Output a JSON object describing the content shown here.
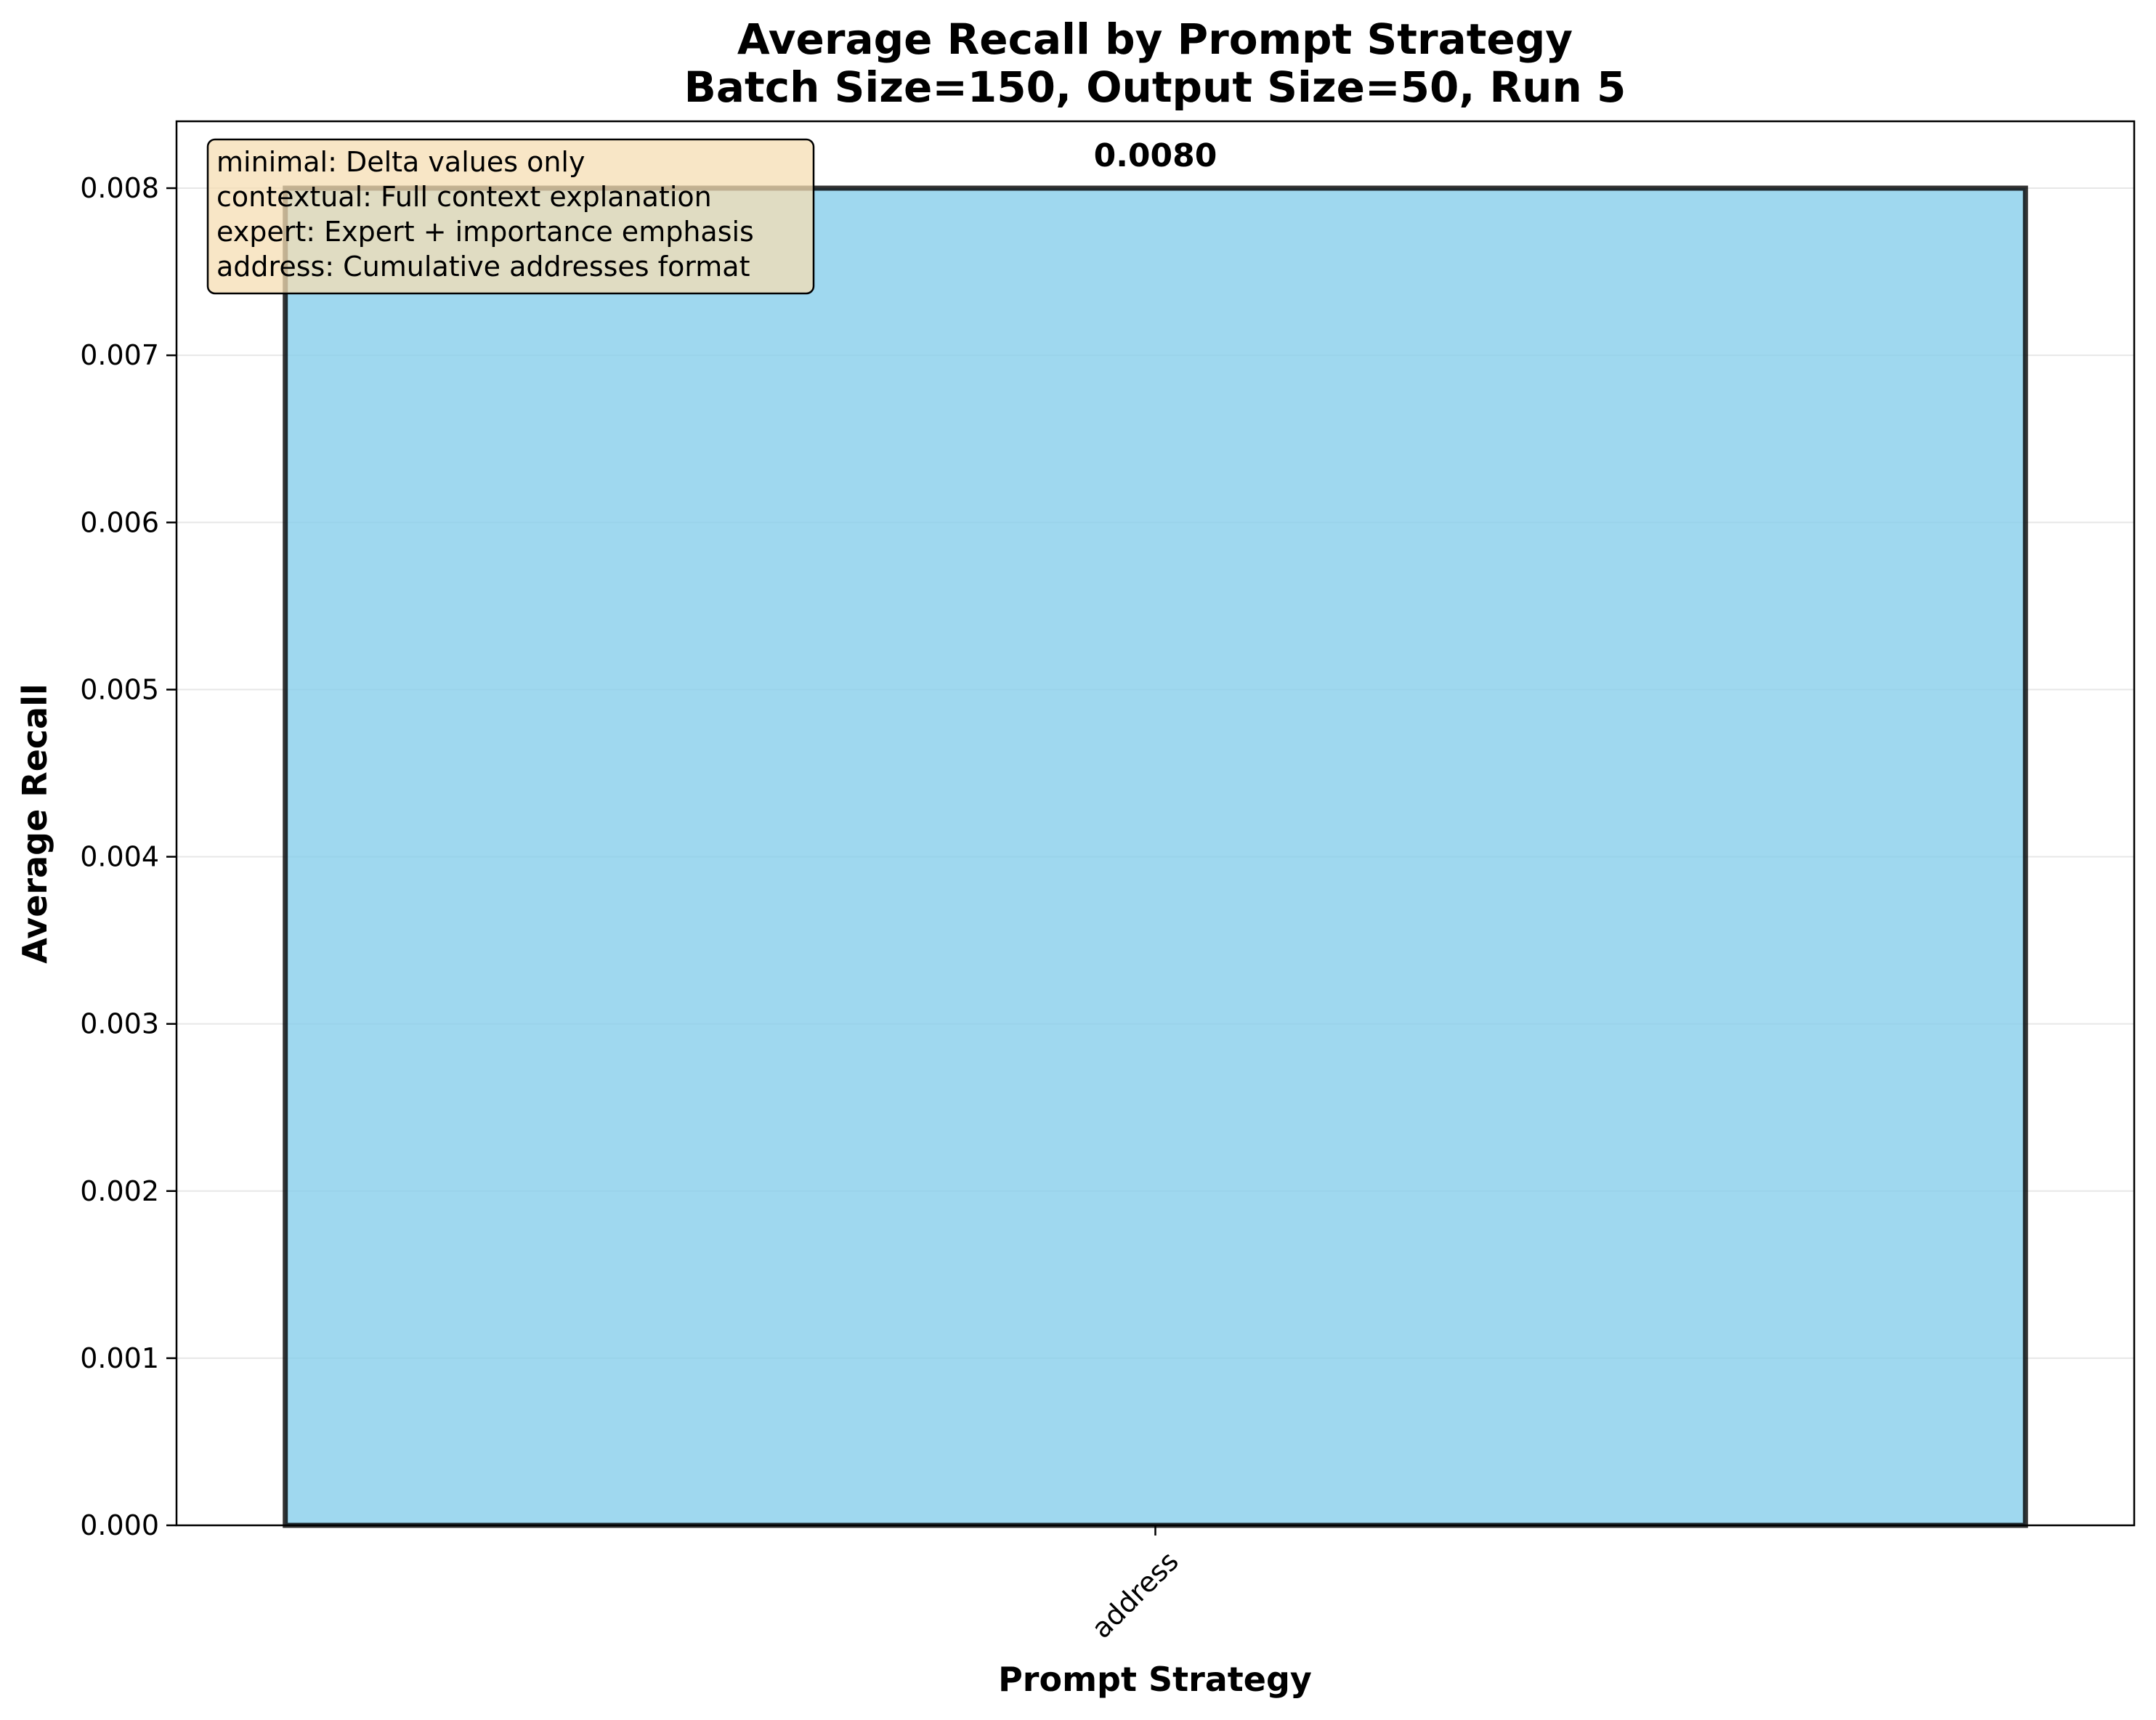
{
  "chart_data": {
    "type": "bar",
    "title_lines": [
      "Average Recall by Prompt Strategy",
      "Batch Size=150, Output Size=50, Run 5"
    ],
    "xlabel": "Prompt Strategy",
    "ylabel": "Average Recall",
    "categories": [
      "address"
    ],
    "values": [
      0.008
    ],
    "value_labels": [
      "0.0080"
    ],
    "ylim": [
      0,
      0.0084
    ],
    "yticks": [
      0.0,
      0.001,
      0.002,
      0.003,
      0.004,
      0.005,
      0.006,
      0.007,
      0.008
    ],
    "ytick_labels": [
      "0.000",
      "0.001",
      "0.002",
      "0.003",
      "0.004",
      "0.005",
      "0.006",
      "0.007",
      "0.008"
    ],
    "grid": "y-axis only",
    "bar_color": "#87ceeb",
    "bar_edge_color": "#000000",
    "legend_box": {
      "placement": "top-left",
      "background": "#f5deb3",
      "lines": [
        "minimal: Delta values only",
        "contextual: Full context explanation",
        "expert: Expert + importance emphasis",
        "address: Cumulative addresses format"
      ]
    }
  }
}
